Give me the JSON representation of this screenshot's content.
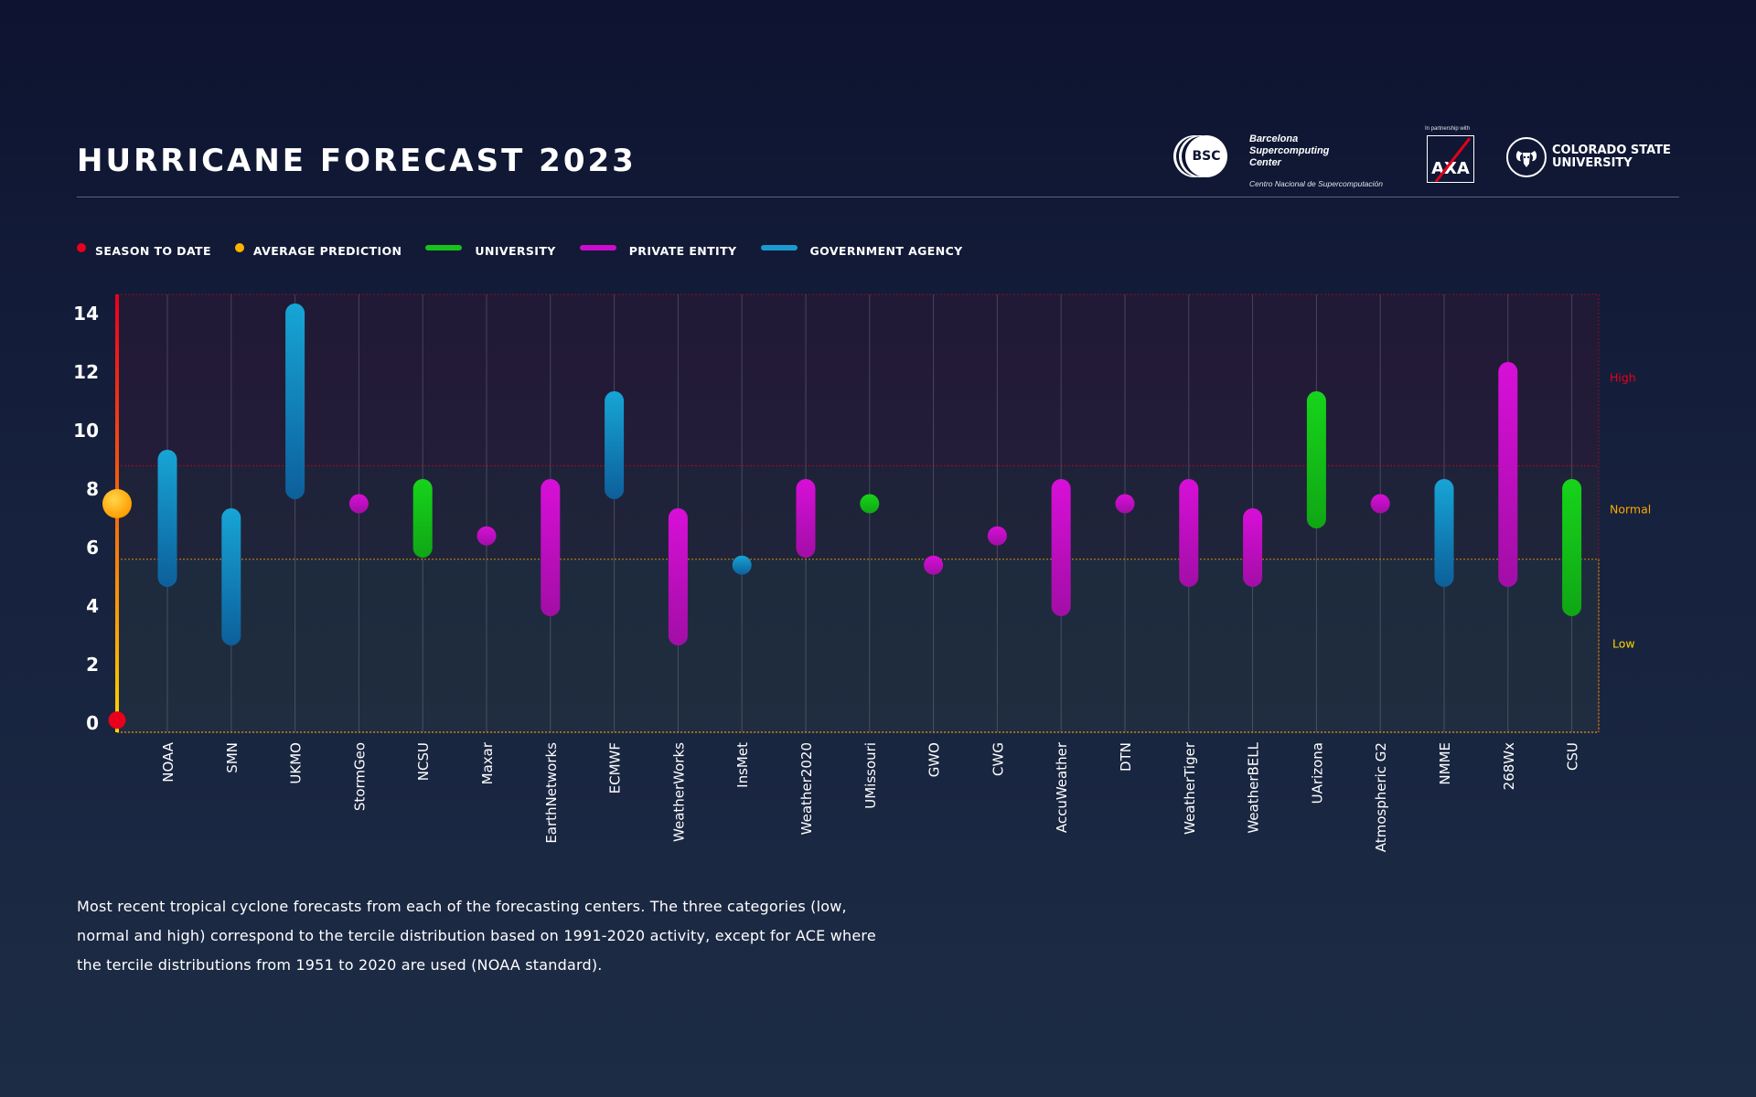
{
  "title": "HURRICANE FORECAST 2023",
  "logos": {
    "bsc": {
      "abbr": "BSC",
      "name_lines": [
        "Barcelona",
        "Supercomputing",
        "Center"
      ],
      "sub": "Centro Nacional de Supercomputación"
    },
    "axa": {
      "tag": "In partnership with",
      "mark": "AXA"
    },
    "csu": {
      "lines": [
        "COLORADO STATE",
        "UNIVERSITY"
      ]
    }
  },
  "legend": [
    {
      "label": "SEASON TO DATE",
      "kind": "dot",
      "color": "#e8001c"
    },
    {
      "label": "AVERAGE PREDICTION",
      "kind": "dot",
      "color": "#ffb300"
    },
    {
      "label": "UNIVERSITY",
      "kind": "line",
      "color": "#17c21a"
    },
    {
      "label": "PRIVATE ENTITY",
      "kind": "line",
      "color": "#cc0ccc"
    },
    {
      "label": "GOVERNMENT AGENCY",
      "kind": "line",
      "color": "#1a9bd0"
    }
  ],
  "colors": {
    "university": [
      "#16d41a",
      "#10a615"
    ],
    "private": [
      "#d80fd8",
      "#a20ea6"
    ],
    "government": [
      "#17a5d6",
      "#0d5f9a"
    ],
    "high_band": "#e8001c",
    "normal_band": "#ffa500",
    "low_band": "#ffd400"
  },
  "chart_data": {
    "type": "range",
    "ylim": [
      0,
      14.7
    ],
    "yticks": [
      0,
      2,
      4,
      6,
      8,
      10,
      12,
      14
    ],
    "tercile_labels": {
      "high": "High",
      "normal": "Normal",
      "low": "Low"
    },
    "terciles": {
      "low_max": 5.6,
      "normal_max": 8.8
    },
    "season_to_date": 0.1,
    "average_prediction": 7.5,
    "categories": [
      "NOAA",
      "SMN",
      "UKMO",
      "StormGeo",
      "NCSU",
      "Maxar",
      "EarthNetworks",
      "ECMWF",
      "WeatherWorks",
      "InsMet",
      "Weather2020",
      "UMissouri",
      "GWO",
      "CWG",
      "AccuWeather",
      "DTN",
      "WeatherTiger",
      "WeatherBELL",
      "UArizona",
      "Atmospheric G2",
      "NMME",
      "268Wx",
      "CSU"
    ],
    "series": [
      {
        "name": "NOAA",
        "type": "government",
        "low": 5,
        "high": 9
      },
      {
        "name": "SMN",
        "type": "government",
        "low": 3,
        "high": 7
      },
      {
        "name": "UKMO",
        "type": "government",
        "low": 8,
        "high": 14
      },
      {
        "name": "StormGeo",
        "type": "private",
        "low": 7.5,
        "high": 7.5
      },
      {
        "name": "NCSU",
        "type": "university",
        "low": 6,
        "high": 8
      },
      {
        "name": "Maxar",
        "type": "private",
        "low": 6.4,
        "high": 6.4
      },
      {
        "name": "EarthNetworks",
        "type": "private",
        "low": 4,
        "high": 8
      },
      {
        "name": "ECMWF",
        "type": "government",
        "low": 8,
        "high": 11
      },
      {
        "name": "WeatherWorks",
        "type": "private",
        "low": 3,
        "high": 7
      },
      {
        "name": "InsMet",
        "type": "government",
        "low": 5.4,
        "high": 5.4
      },
      {
        "name": "Weather2020",
        "type": "private",
        "low": 6,
        "high": 8
      },
      {
        "name": "UMissouri",
        "type": "university",
        "low": 7.5,
        "high": 7.5
      },
      {
        "name": "GWO",
        "type": "private",
        "low": 5.4,
        "high": 5.4
      },
      {
        "name": "CWG",
        "type": "private",
        "low": 6.4,
        "high": 6.4
      },
      {
        "name": "AccuWeather",
        "type": "private",
        "low": 4,
        "high": 8
      },
      {
        "name": "DTN",
        "type": "private",
        "low": 7.5,
        "high": 7.5
      },
      {
        "name": "WeatherTiger",
        "type": "private",
        "low": 5,
        "high": 8
      },
      {
        "name": "WeatherBELL",
        "type": "private",
        "low": 5,
        "high": 7
      },
      {
        "name": "UArizona",
        "type": "university",
        "low": 7,
        "high": 11
      },
      {
        "name": "Atmospheric G2",
        "type": "private",
        "low": 7.5,
        "high": 7.5
      },
      {
        "name": "NMME",
        "type": "government",
        "low": 5,
        "high": 8
      },
      {
        "name": "268Wx",
        "type": "private",
        "low": 5,
        "high": 12
      },
      {
        "name": "CSU",
        "type": "university",
        "low": 4,
        "high": 8
      }
    ]
  },
  "caption": "Most recent tropical cyclone forecasts from each of the forecasting centers. The three categories (low, normal and high) correspond to the tercile distribution based on 1991-2020 activity, except for ACE where the tercile distributions from 1951 to 2020 are used (NOAA standard)."
}
